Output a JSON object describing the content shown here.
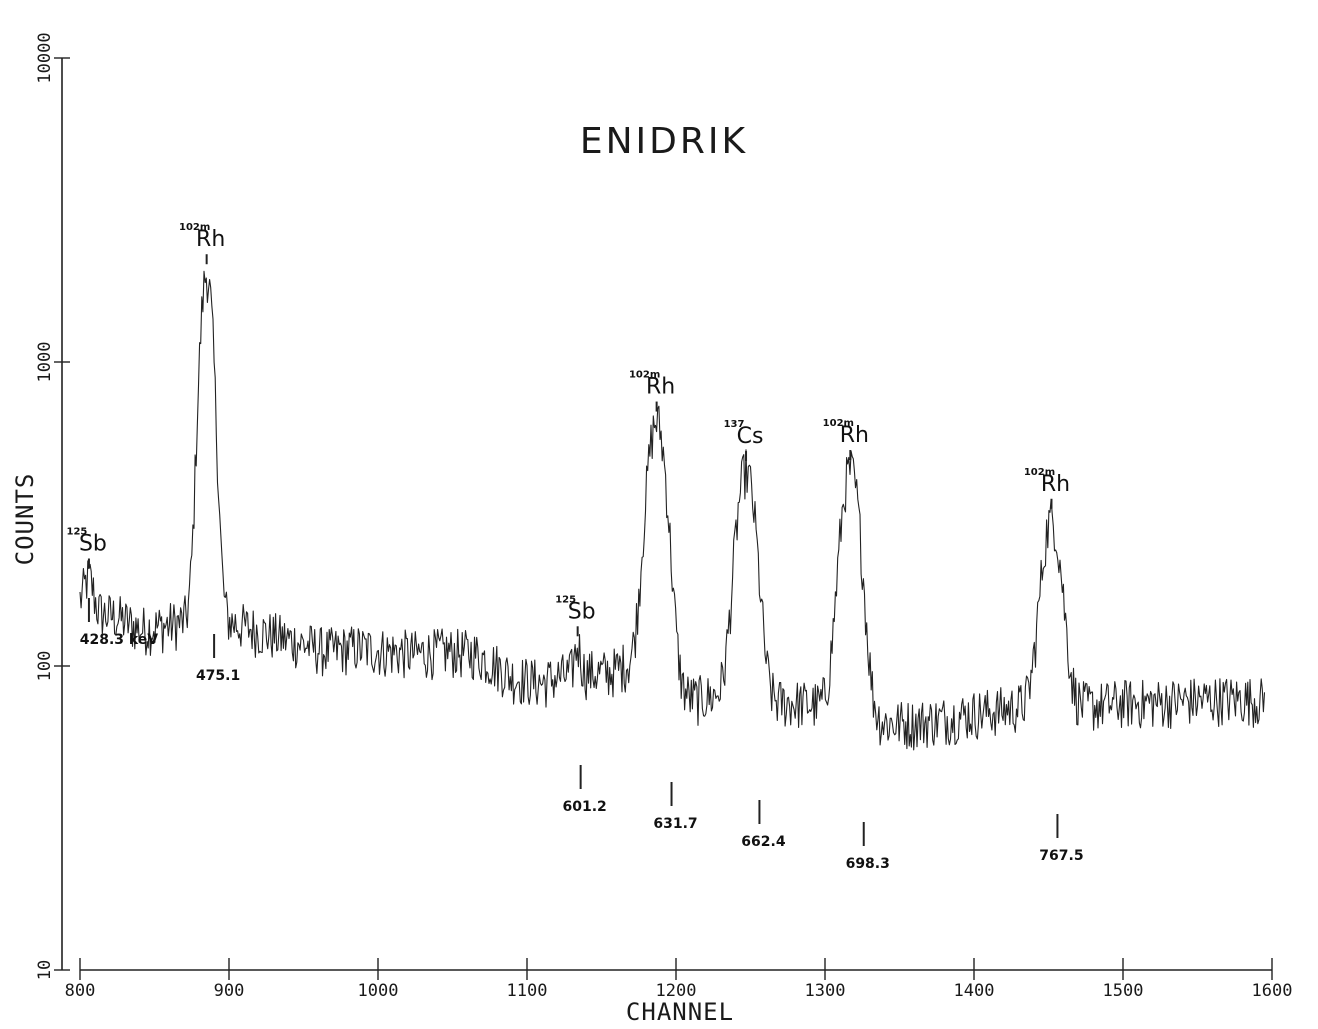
{
  "chart_data": {
    "type": "line",
    "title": "ENIDRIK",
    "xlabel": "CHANNEL",
    "ylabel": "COUNTS",
    "xlim": [
      800,
      1600
    ],
    "ylim": [
      10,
      10000
    ],
    "yscale": "log",
    "grid": false,
    "x_ticks": [
      800,
      900,
      1000,
      1100,
      1200,
      1300,
      1400,
      1500,
      1600
    ],
    "x_tick_labels": [
      "800",
      "900",
      "1000",
      "1100",
      "1200",
      "1300",
      "1400",
      "1500",
      "1600"
    ],
    "y_ticks": [
      10,
      100,
      1000,
      10000
    ],
    "y_tick_labels": [
      "10",
      "100",
      "1000",
      "10000"
    ],
    "line_color": "#222222",
    "spectrum": {
      "baseline": [
        [
          800,
          160
        ],
        [
          810,
          150
        ],
        [
          825,
          145
        ],
        [
          840,
          132
        ],
        [
          855,
          135
        ],
        [
          870,
          140
        ],
        [
          878,
          150
        ],
        [
          890,
          140
        ],
        [
          895,
          150
        ],
        [
          900,
          140
        ],
        [
          910,
          135
        ],
        [
          925,
          128
        ],
        [
          945,
          120
        ],
        [
          965,
          112
        ],
        [
          985,
          115
        ],
        [
          1005,
          112
        ],
        [
          1025,
          110
        ],
        [
          1045,
          112
        ],
        [
          1065,
          110
        ],
        [
          1080,
          100
        ],
        [
          1090,
          92
        ],
        [
          1100,
          90
        ],
        [
          1110,
          88
        ],
        [
          1120,
          92
        ],
        [
          1140,
          95
        ],
        [
          1155,
          95
        ],
        [
          1165,
          100
        ],
        [
          1175,
          98
        ],
        [
          1185,
          88
        ],
        [
          1200,
          80
        ],
        [
          1215,
          78
        ],
        [
          1230,
          80
        ],
        [
          1245,
          78
        ],
        [
          1260,
          76
        ],
        [
          1275,
          76
        ],
        [
          1290,
          75
        ],
        [
          1300,
          74
        ],
        [
          1315,
          72
        ],
        [
          1325,
          68
        ],
        [
          1340,
          65
        ],
        [
          1360,
          65
        ],
        [
          1380,
          67
        ],
        [
          1400,
          70
        ],
        [
          1420,
          72
        ],
        [
          1440,
          75
        ],
        [
          1460,
          75
        ],
        [
          1480,
          74
        ],
        [
          1500,
          76
        ],
        [
          1520,
          76
        ],
        [
          1540,
          77
        ],
        [
          1560,
          78
        ],
        [
          1580,
          78
        ],
        [
          1595,
          77
        ]
      ],
      "peaks": [
        {
          "center": 885,
          "amplitude": 1800,
          "sigma": 4
        },
        {
          "center": 1187,
          "amplitude": 550,
          "sigma": 6
        },
        {
          "center": 1247,
          "amplitude": 360,
          "sigma": 6
        },
        {
          "center": 1317,
          "amplitude": 370,
          "sigma": 6
        },
        {
          "center": 1452,
          "amplitude": 230,
          "sigma": 6
        },
        {
          "center": 806,
          "amplitude": 40,
          "sigma": 3
        },
        {
          "center": 1134,
          "amplitude": 22,
          "sigma": 2
        }
      ]
    },
    "peak_labels": [
      {
        "sup": "125",
        "element": "Sb",
        "x": 806
      },
      {
        "sup": "102m",
        "element": "Rh",
        "x": 885
      },
      {
        "sup": "125",
        "element": "Sb",
        "x": 1134
      },
      {
        "sup": "102m",
        "element": "Rh",
        "x": 1187
      },
      {
        "sup": "137",
        "element": "Cs",
        "x": 1247
      },
      {
        "sup": "102m",
        "element": "Rh",
        "x": 1317
      },
      {
        "sup": "102m",
        "element": "Rh",
        "x": 1452
      }
    ],
    "energy_markers": [
      {
        "label": "428.3 keV",
        "x": 806
      },
      {
        "label": "475.1",
        "x": 890
      },
      {
        "label": "601.2",
        "x": 1136
      },
      {
        "label": "631.7",
        "x": 1197
      },
      {
        "label": "662.4",
        "x": 1256
      },
      {
        "label": "698.3",
        "x": 1326
      },
      {
        "label": "767.5",
        "x": 1456
      }
    ]
  }
}
